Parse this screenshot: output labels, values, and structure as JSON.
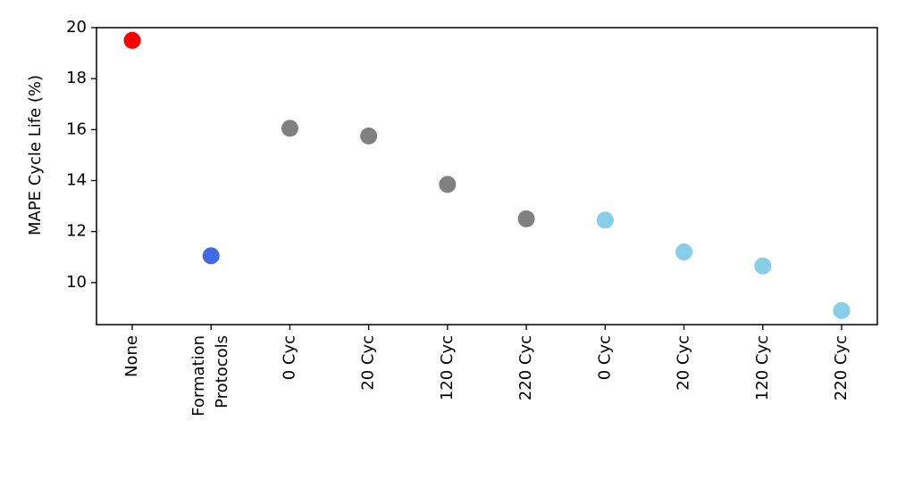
{
  "chart_data": {
    "type": "scatter",
    "y_label": "MAPE Cycle Life (%)",
    "categories": [
      "None",
      "Formation\nProtocols",
      "0 Cyc",
      "20 Cyc",
      "120 Cyc",
      "220 Cyc",
      "0 Cyc",
      "20 Cyc",
      "120 Cyc",
      "220 Cyc"
    ],
    "values": [
      19.5,
      11.05,
      16.05,
      15.75,
      13.85,
      12.5,
      12.45,
      11.2,
      10.65,
      8.9
    ],
    "colors": [
      "#ff0000",
      "#4169e1",
      "#808080",
      "#808080",
      "#808080",
      "#808080",
      "#87ceeb",
      "#87ceeb",
      "#87ceeb",
      "#87ceeb"
    ],
    "ylim": [
      8.35,
      20.0
    ],
    "yticks": [
      10,
      12,
      14,
      16,
      18,
      20
    ],
    "grid": false
  }
}
